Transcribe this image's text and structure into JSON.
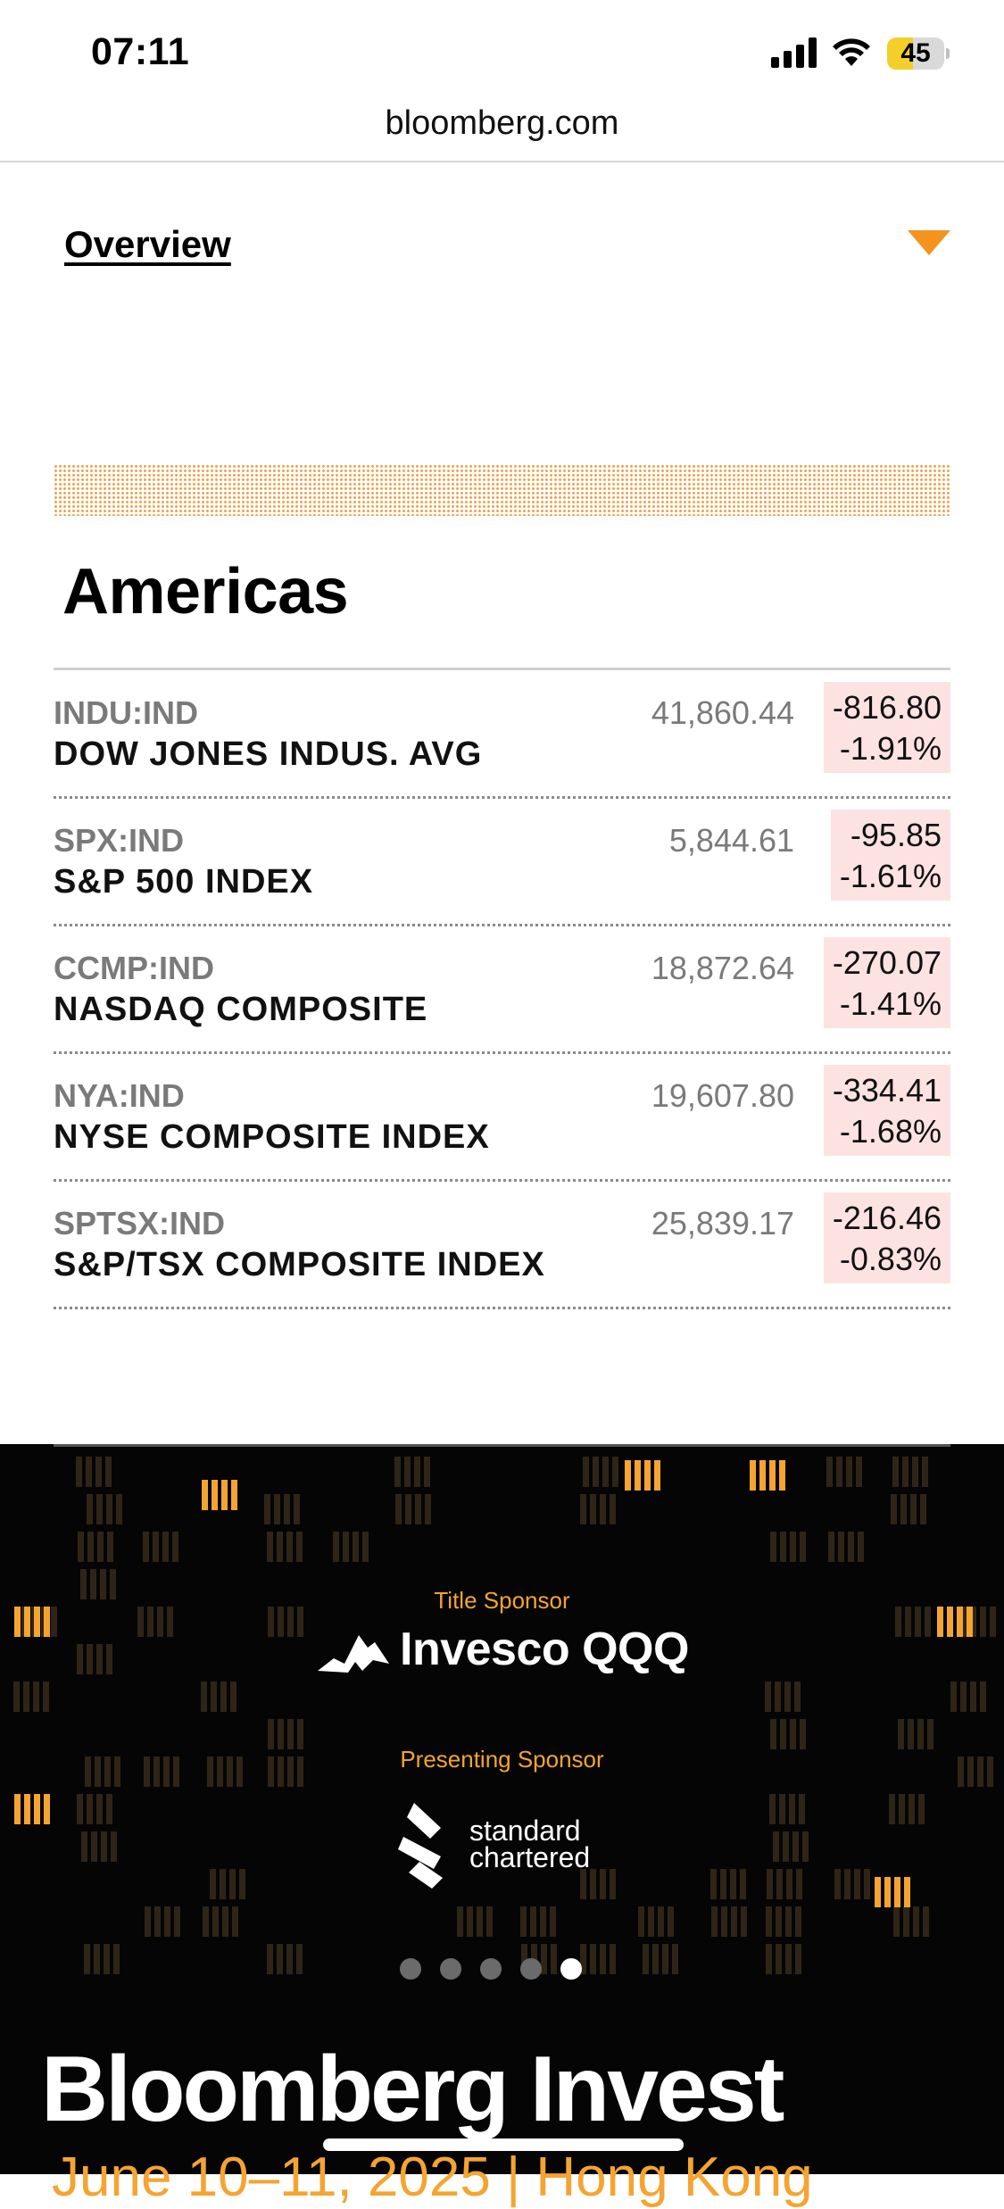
{
  "status_bar": {
    "time": "07:11",
    "battery_level": "45",
    "battery_fraction": 0.45,
    "icons": [
      "signal-icon",
      "wifi-icon",
      "battery-icon"
    ]
  },
  "browser": {
    "url": "bloomberg.com"
  },
  "overview": {
    "label": "Overview",
    "dropdown_icon": "triangle-down-icon"
  },
  "section": {
    "title": "Americas"
  },
  "quotes": [
    {
      "ticker": "INDU:IND",
      "name": "DOW JONES INDUS. AVG",
      "price": "41,860.44",
      "change": "-816.80",
      "pct": "-1.91%"
    },
    {
      "ticker": "SPX:IND",
      "name": "S&P 500 INDEX",
      "price": "5,844.61",
      "change": "-95.85",
      "pct": "-1.61%"
    },
    {
      "ticker": "CCMP:IND",
      "name": "NASDAQ COMPOSITE",
      "price": "18,872.64",
      "change": "-270.07",
      "pct": "-1.41%"
    },
    {
      "ticker": "NYA:IND",
      "name": "NYSE COMPOSITE INDEX",
      "price": "19,607.80",
      "change": "-334.41",
      "pct": "-1.68%"
    },
    {
      "ticker": "SPTSX:IND",
      "name": "S&P/TSX COMPOSITE INDEX",
      "price": "25,839.17",
      "change": "-216.46",
      "pct": "-0.83%"
    }
  ],
  "ad": {
    "title_sponsor_label": "Title Sponsor",
    "title_sponsor": "Invesco QQQ",
    "presenting_sponsor_label": "Presenting Sponsor",
    "presenting_sponsor_line1": "standard",
    "presenting_sponsor_line2": "chartered",
    "brand": "Bloomberg Invest",
    "date_line": "June 10–11, 2025 | Hong Kong",
    "carousel_count": 5,
    "carousel_active": 5,
    "colors": {
      "accent": "#f5a431",
      "background": "#050505"
    }
  },
  "colors": {
    "negative_bg": "#fde2e2",
    "orange": "#f2a14a"
  }
}
